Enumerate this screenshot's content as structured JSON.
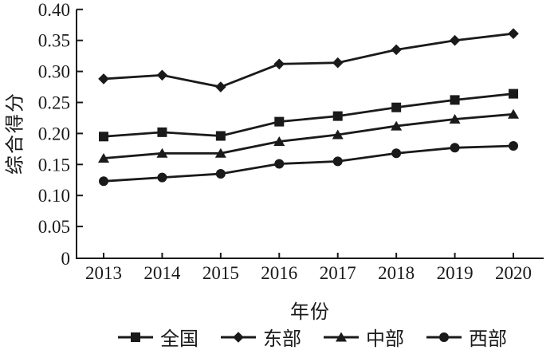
{
  "figure": {
    "background": "#ffffff",
    "ink_color": "#1a1a1a"
  },
  "chart_data": {
    "type": "line",
    "title": "",
    "xlabel": "年份",
    "ylabel": "综合得分",
    "x": [
      2013,
      2014,
      2015,
      2016,
      2017,
      2018,
      2019,
      2020
    ],
    "x_tick_labels": [
      "2013",
      "2014",
      "2015",
      "2016",
      "2017",
      "2018",
      "2019",
      "2020"
    ],
    "ylim": [
      0,
      0.4
    ],
    "ytick_step": 0.05,
    "ytick_labels": [
      "0",
      "0.05",
      "0.10",
      "0.15",
      "0.20",
      "0.25",
      "0.30",
      "0.35",
      "0.40"
    ],
    "grid": false,
    "legend_position": "bottom",
    "series": [
      {
        "name": "全国",
        "marker": "square",
        "color": "#1a1a1a",
        "values": [
          0.195,
          0.202,
          0.196,
          0.219,
          0.228,
          0.242,
          0.254,
          0.264
        ]
      },
      {
        "name": "东部",
        "marker": "diamond",
        "color": "#1a1a1a",
        "values": [
          0.288,
          0.294,
          0.275,
          0.312,
          0.314,
          0.335,
          0.35,
          0.361
        ]
      },
      {
        "name": "中部",
        "marker": "triangle",
        "color": "#1a1a1a",
        "values": [
          0.16,
          0.168,
          0.168,
          0.187,
          0.198,
          0.212,
          0.223,
          0.231
        ]
      },
      {
        "name": "西部",
        "marker": "circle",
        "color": "#1a1a1a",
        "values": [
          0.123,
          0.129,
          0.135,
          0.151,
          0.155,
          0.168,
          0.177,
          0.18
        ]
      }
    ]
  }
}
